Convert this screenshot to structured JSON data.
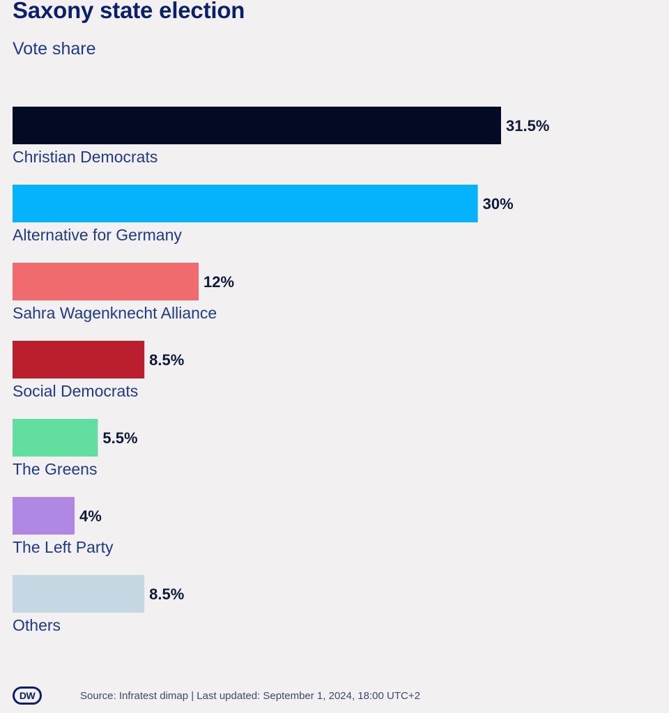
{
  "chart_data": {
    "type": "bar",
    "orientation": "horizontal",
    "title": "Saxony state election",
    "subtitle": "Vote share",
    "categories": [
      "Christian Democrats",
      "Alternative for Germany",
      "Sahra Wagenknecht Alliance",
      "Social Democrats",
      "The Greens",
      "The Left Party",
      "Others"
    ],
    "values": [
      31.5,
      30,
      12,
      8.5,
      5.5,
      4,
      8.5
    ],
    "value_labels": [
      "31.5%",
      "30%",
      "12%",
      "8.5%",
      "5.5%",
      "4%",
      "8.5%"
    ],
    "colors": [
      "#030a24",
      "#05b2fc",
      "#ef6b6e",
      "#bb1f2e",
      "#62dea0",
      "#b088e4",
      "#c4d7e3"
    ],
    "xlim": [
      0,
      31.5
    ],
    "grid": false,
    "legend": "none"
  },
  "footer": {
    "logo_text": "DW",
    "source": "Source: Infratest dimap | Last updated: September 1, 2024, 18:00 UTC+2"
  }
}
